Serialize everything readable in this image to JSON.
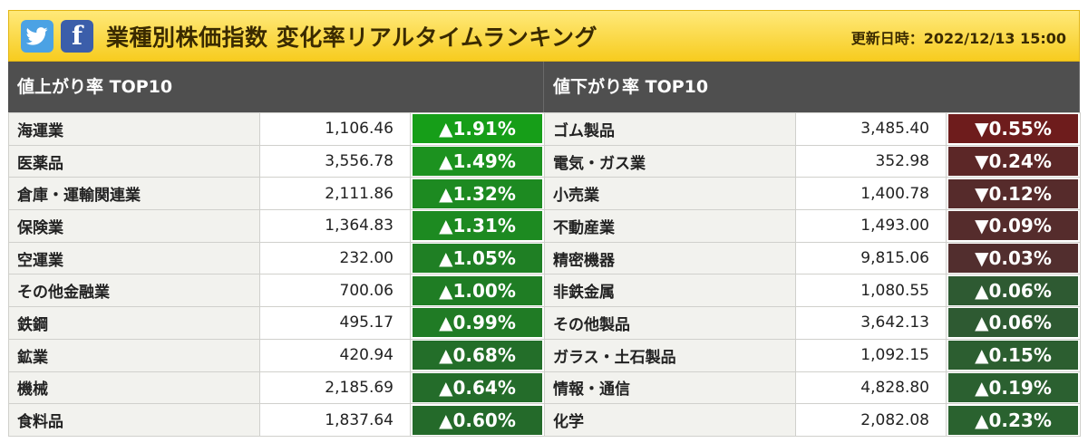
{
  "header": {
    "twitter_icon": "twitter-bird-icon",
    "facebook_icon": "facebook-f-icon",
    "facebook_glyph": "f",
    "title": "業種別株価指数 変化率リアルタイムランキング",
    "updated": "更新日時：2022/12/13 15:00"
  },
  "gainers": {
    "title": "値上がり率 TOP10",
    "rows": [
      {
        "name": "海運業",
        "price": "1,106.46",
        "change": "▲1.91%",
        "color": "#169e18"
      },
      {
        "name": "医薬品",
        "price": "3,556.78",
        "change": "▲1.49%",
        "color": "#1c921f"
      },
      {
        "name": "倉庫・運輸関連業",
        "price": "2,111.86",
        "change": "▲1.32%",
        "color": "#1d8a21"
      },
      {
        "name": "保険業",
        "price": "1,364.83",
        "change": "▲1.31%",
        "color": "#1d8a21"
      },
      {
        "name": "空運業",
        "price": "232.00",
        "change": "▲1.05%",
        "color": "#1f7f24"
      },
      {
        "name": "その他金融業",
        "price": "700.06",
        "change": "▲1.00%",
        "color": "#1f7d24"
      },
      {
        "name": "鉄鋼",
        "price": "495.17",
        "change": "▲0.99%",
        "color": "#207b25"
      },
      {
        "name": "鉱業",
        "price": "420.94",
        "change": "▲0.68%",
        "color": "#236e29"
      },
      {
        "name": "機械",
        "price": "2,185.69",
        "change": "▲0.64%",
        "color": "#246c2a"
      },
      {
        "name": "食料品",
        "price": "1,837.64",
        "change": "▲0.60%",
        "color": "#246a2a"
      }
    ]
  },
  "losers": {
    "title": "値下がり率 TOP10",
    "rows": [
      {
        "name": "ゴム製品",
        "price": "3,485.40",
        "change": "▼0.55%",
        "color": "#6e1c1c"
      },
      {
        "name": "電気・ガス業",
        "price": "352.98",
        "change": "▼0.24%",
        "color": "#5c2727"
      },
      {
        "name": "小売業",
        "price": "1,400.78",
        "change": "▼0.12%",
        "color": "#562b2b"
      },
      {
        "name": "不動産業",
        "price": "1,493.00",
        "change": "▼0.09%",
        "color": "#552c2c"
      },
      {
        "name": "精密機器",
        "price": "9,815.06",
        "change": "▼0.03%",
        "color": "#522e2e"
      },
      {
        "name": "非鉄金属",
        "price": "1,080.55",
        "change": "▲0.06%",
        "color": "#2e5a32"
      },
      {
        "name": "その他製品",
        "price": "3,642.13",
        "change": "▲0.06%",
        "color": "#2e5a32"
      },
      {
        "name": "ガラス・土石製品",
        "price": "1,092.15",
        "change": "▲0.15%",
        "color": "#2c5e30"
      },
      {
        "name": "情報・通信",
        "price": "4,828.80",
        "change": "▲0.19%",
        "color": "#2b6030"
      },
      {
        "name": "化学",
        "price": "2,082.08",
        "change": "▲0.23%",
        "color": "#2a622f"
      }
    ]
  }
}
